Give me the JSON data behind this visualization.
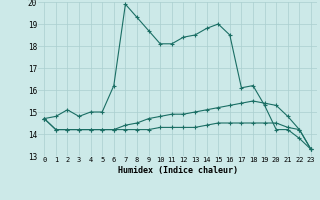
{
  "xlabel": "Humidex (Indice chaleur)",
  "bg_color": "#cce9e8",
  "grid_color": "#aacfcf",
  "line_color": "#1a6e64",
  "xlim": [
    -0.5,
    23.5
  ],
  "ylim": [
    13,
    20
  ],
  "xticks": [
    0,
    1,
    2,
    3,
    4,
    5,
    6,
    7,
    8,
    9,
    10,
    11,
    12,
    13,
    14,
    15,
    16,
    17,
    18,
    19,
    20,
    21,
    22,
    23
  ],
  "yticks": [
    13,
    14,
    15,
    16,
    17,
    18,
    19,
    20
  ],
  "series": [
    [
      14.7,
      14.8,
      15.1,
      14.8,
      15.0,
      15.0,
      16.2,
      19.9,
      19.3,
      18.7,
      18.1,
      18.1,
      18.4,
      18.5,
      18.8,
      19.0,
      18.5,
      16.1,
      16.2,
      15.3,
      14.2,
      14.2,
      13.8,
      13.3
    ],
    [
      14.7,
      14.2,
      14.2,
      14.2,
      14.2,
      14.2,
      14.2,
      14.2,
      14.2,
      14.2,
      14.3,
      14.3,
      14.3,
      14.3,
      14.4,
      14.5,
      14.5,
      14.5,
      14.5,
      14.5,
      14.5,
      14.3,
      14.2,
      13.3
    ],
    [
      14.7,
      14.2,
      14.2,
      14.2,
      14.2,
      14.2,
      14.2,
      14.4,
      14.5,
      14.7,
      14.8,
      14.9,
      14.9,
      15.0,
      15.1,
      15.2,
      15.3,
      15.4,
      15.5,
      15.4,
      15.3,
      14.8,
      14.2,
      13.3
    ]
  ]
}
